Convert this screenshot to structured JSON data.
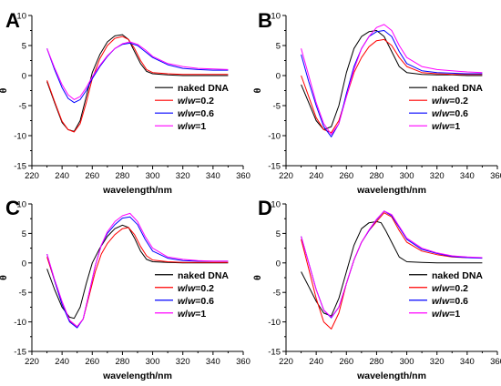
{
  "chart_data": [
    {
      "type": "line",
      "panel": "A",
      "xlabel": "wavelength/nm",
      "ylabel": "θ",
      "xlim": [
        220,
        360
      ],
      "ylim": [
        -15,
        10
      ],
      "xticks": [
        220,
        240,
        260,
        280,
        300,
        320,
        340,
        360
      ],
      "yticks": [
        -15,
        -10,
        -5,
        0,
        5,
        10
      ],
      "legend_position": "lower-right",
      "series": [
        {
          "name": "naked DNA",
          "color": "#000000",
          "x": [
            230,
            235,
            240,
            244,
            248,
            252,
            256,
            260,
            265,
            270,
            275,
            280,
            284,
            288,
            292,
            296,
            300,
            310,
            320,
            330,
            340,
            350
          ],
          "y": [
            -1,
            -4.5,
            -7.8,
            -9.0,
            -9.3,
            -7.5,
            -3.5,
            0.5,
            3.5,
            5.6,
            6.6,
            6.8,
            6.0,
            4.0,
            2.0,
            0.7,
            0.3,
            0.1,
            0,
            0,
            0,
            0
          ]
        },
        {
          "name": "w/w=0.2",
          "color": "#ff0000",
          "x": [
            230,
            235,
            240,
            244,
            248,
            252,
            256,
            260,
            265,
            270,
            275,
            280,
            284,
            288,
            292,
            296,
            300,
            310,
            320,
            330,
            340,
            350
          ],
          "y": [
            -0.8,
            -4.3,
            -7.6,
            -9.0,
            -9.4,
            -8.0,
            -4.5,
            -0.5,
            2.8,
            5.0,
            6.2,
            6.5,
            6.0,
            4.5,
            2.5,
            1.0,
            0.5,
            0.3,
            0.2,
            0.2,
            0.2,
            0.2
          ]
        },
        {
          "name": "w/w=0.6",
          "color": "#0000ff",
          "x": [
            230,
            235,
            240,
            244,
            248,
            252,
            256,
            260,
            265,
            270,
            275,
            280,
            285,
            290,
            295,
            300,
            310,
            320,
            330,
            340,
            350
          ],
          "y": [
            4.5,
            1.0,
            -2.0,
            -3.8,
            -4.5,
            -4.0,
            -2.5,
            -0.5,
            1.5,
            3.2,
            4.5,
            5.2,
            5.4,
            5.0,
            4.0,
            3.0,
            1.8,
            1.2,
            1.0,
            0.9,
            0.9
          ]
        },
        {
          "name": "w/w=1",
          "color": "#ff00ff",
          "x": [
            230,
            235,
            240,
            244,
            248,
            252,
            256,
            260,
            265,
            270,
            275,
            280,
            285,
            290,
            295,
            300,
            310,
            320,
            330,
            340,
            350
          ],
          "y": [
            4.5,
            1.3,
            -1.5,
            -3.2,
            -4.0,
            -3.5,
            -2.0,
            -0.2,
            1.7,
            3.3,
            4.5,
            5.3,
            5.6,
            5.2,
            4.3,
            3.2,
            2.0,
            1.5,
            1.2,
            1.1,
            1.0
          ]
        }
      ]
    },
    {
      "type": "line",
      "panel": "B",
      "xlabel": "wavelength/nm",
      "ylabel": "θ",
      "xlim": [
        220,
        360
      ],
      "ylim": [
        -15,
        10
      ],
      "xticks": [
        220,
        240,
        260,
        280,
        300,
        320,
        340,
        360
      ],
      "yticks": [
        -15,
        -10,
        -5,
        0,
        5,
        10
      ],
      "legend_position": "lower-right",
      "series": [
        {
          "name": "naked DNA",
          "color": "#000000",
          "x": [
            230,
            235,
            240,
            245,
            250,
            255,
            260,
            265,
            270,
            275,
            280,
            285,
            290,
            295,
            300,
            310,
            320,
            330,
            340,
            350
          ],
          "y": [
            -1.5,
            -4.5,
            -7.5,
            -9.0,
            -8.5,
            -5.0,
            0.5,
            4.5,
            6.5,
            7.3,
            7.5,
            6.5,
            4.0,
            1.5,
            0.5,
            0.2,
            0.1,
            0.1,
            0,
            0
          ]
        },
        {
          "name": "w/w=0.2",
          "color": "#ff0000",
          "x": [
            230,
            235,
            240,
            245,
            250,
            255,
            260,
            265,
            270,
            275,
            280,
            285,
            290,
            295,
            300,
            310,
            320,
            330,
            340,
            350
          ],
          "y": [
            0,
            -3.5,
            -7.0,
            -9.0,
            -9.5,
            -7.5,
            -3.5,
            0.5,
            3.0,
            4.8,
            5.8,
            6.0,
            5.0,
            3.0,
            1.5,
            0.5,
            0.3,
            0.2,
            0.2,
            0.2
          ]
        },
        {
          "name": "w/w=0.6",
          "color": "#0000ff",
          "x": [
            230,
            235,
            240,
            245,
            250,
            255,
            260,
            265,
            270,
            275,
            280,
            285,
            290,
            295,
            300,
            310,
            320,
            330,
            340,
            350
          ],
          "y": [
            3.5,
            -1.0,
            -5.0,
            -8.5,
            -10.2,
            -8.0,
            -3.0,
            1.5,
            4.5,
            6.5,
            7.3,
            7.5,
            6.5,
            4.0,
            2.0,
            0.8,
            0.5,
            0.4,
            0.3,
            0.3
          ]
        },
        {
          "name": "w/w=1",
          "color": "#ff00ff",
          "x": [
            230,
            235,
            240,
            245,
            250,
            255,
            260,
            265,
            270,
            275,
            280,
            285,
            290,
            295,
            300,
            310,
            320,
            330,
            340,
            350
          ],
          "y": [
            4.5,
            0,
            -4.5,
            -8.0,
            -9.8,
            -8.0,
            -3.5,
            1.0,
            4.5,
            6.5,
            8.0,
            8.5,
            7.5,
            5.0,
            3.0,
            1.5,
            1.0,
            0.8,
            0.6,
            0.5
          ]
        }
      ]
    },
    {
      "type": "line",
      "panel": "C",
      "xlabel": "wavelength/nm",
      "ylabel": "θ",
      "xlim": [
        220,
        360
      ],
      "ylim": [
        -15,
        10
      ],
      "xticks": [
        220,
        240,
        260,
        280,
        300,
        320,
        340,
        360
      ],
      "yticks": [
        -15,
        -10,
        -5,
        0,
        5,
        10
      ],
      "legend_position": "lower-right",
      "series": [
        {
          "name": "naked DNA",
          "color": "#000000",
          "x": [
            230,
            235,
            240,
            245,
            248,
            252,
            256,
            260,
            265,
            270,
            275,
            280,
            284,
            288,
            292,
            296,
            300,
            310,
            320,
            330,
            340,
            350
          ],
          "y": [
            -1.0,
            -4.5,
            -7.5,
            -9.2,
            -9.4,
            -7.5,
            -3.5,
            0,
            2.5,
            4.5,
            5.8,
            6.4,
            6.0,
            4.2,
            2.0,
            0.6,
            0.2,
            0.1,
            0,
            0,
            0,
            0
          ]
        },
        {
          "name": "w/w=0.2",
          "color": "#ff0000",
          "x": [
            230,
            235,
            240,
            245,
            250,
            254,
            258,
            262,
            266,
            270,
            275,
            280,
            284,
            288,
            292,
            296,
            300,
            310,
            320,
            330,
            340,
            350
          ],
          "y": [
            1.0,
            -3.0,
            -7.0,
            -9.8,
            -10.8,
            -9.5,
            -5.5,
            -1.5,
            1.5,
            3.3,
            4.8,
            5.8,
            6.0,
            4.8,
            2.8,
            1.2,
            0.5,
            0.2,
            0.1,
            0.1,
            0.1,
            0.1
          ]
        },
        {
          "name": "w/w=0.6",
          "color": "#0000ff",
          "x": [
            230,
            235,
            240,
            245,
            250,
            254,
            258,
            262,
            266,
            270,
            275,
            280,
            285,
            290,
            295,
            300,
            310,
            320,
            330,
            340,
            350
          ],
          "y": [
            1.5,
            -3.0,
            -7.0,
            -10.0,
            -11.0,
            -9.5,
            -5.0,
            -0.5,
            3.0,
            5.0,
            6.5,
            7.6,
            7.8,
            6.5,
            4.0,
            2.0,
            0.8,
            0.4,
            0.3,
            0.3,
            0.3
          ]
        },
        {
          "name": "w/w=1",
          "color": "#ff00ff",
          "x": [
            230,
            235,
            240,
            245,
            250,
            254,
            258,
            262,
            266,
            270,
            275,
            280,
            285,
            290,
            295,
            300,
            310,
            320,
            330,
            340,
            350
          ],
          "y": [
            1.5,
            -2.8,
            -6.5,
            -9.7,
            -10.8,
            -9.5,
            -5.0,
            -0.5,
            3.0,
            5.3,
            7.0,
            8.0,
            8.4,
            7.0,
            4.5,
            2.5,
            1.0,
            0.6,
            0.4,
            0.3,
            0.3
          ]
        }
      ]
    },
    {
      "type": "line",
      "panel": "D",
      "xlabel": "wavelength/nm",
      "ylabel": "θ",
      "xlim": [
        220,
        360
      ],
      "ylim": [
        -15,
        10
      ],
      "xticks": [
        220,
        240,
        260,
        280,
        300,
        320,
        340,
        360
      ],
      "yticks": [
        -15,
        -10,
        -5,
        0,
        5,
        10
      ],
      "legend_position": "lower-right",
      "series": [
        {
          "name": "naked DNA",
          "color": "#000000",
          "x": [
            230,
            235,
            240,
            245,
            250,
            255,
            260,
            265,
            270,
            275,
            280,
            283,
            286,
            290,
            295,
            300,
            310,
            320,
            330,
            340,
            350
          ],
          "y": [
            -1.5,
            -4.0,
            -6.5,
            -8.5,
            -9.0,
            -6.0,
            -1.5,
            3.0,
            5.8,
            6.8,
            7.0,
            6.8,
            5.5,
            3.5,
            1.0,
            0.2,
            0.1,
            0,
            0,
            0,
            0
          ]
        },
        {
          "name": "w/w=0.2",
          "color": "#ff0000",
          "x": [
            230,
            235,
            240,
            245,
            250,
            255,
            260,
            265,
            270,
            275,
            280,
            285,
            290,
            295,
            300,
            310,
            320,
            330,
            340,
            350
          ],
          "y": [
            4.0,
            -1.0,
            -6.0,
            -10.0,
            -11.2,
            -8.5,
            -3.5,
            0.5,
            3.5,
            5.5,
            7.0,
            8.5,
            7.8,
            5.5,
            3.5,
            2.0,
            1.4,
            1.0,
            0.9,
            0.9
          ]
        },
        {
          "name": "w/w=0.6",
          "color": "#0000ff",
          "x": [
            230,
            235,
            240,
            245,
            250,
            255,
            260,
            265,
            270,
            275,
            280,
            285,
            290,
            295,
            300,
            310,
            320,
            330,
            340,
            350
          ],
          "y": [
            4.5,
            0,
            -4.5,
            -8.0,
            -9.3,
            -7.5,
            -3.5,
            0.5,
            3.5,
            5.5,
            7.3,
            8.8,
            8.0,
            6.0,
            4.0,
            2.3,
            1.6,
            1.1,
            0.9,
            0.8
          ]
        },
        {
          "name": "w/w=1",
          "color": "#ff00ff",
          "x": [
            230,
            235,
            240,
            245,
            250,
            255,
            260,
            265,
            270,
            275,
            280,
            285,
            290,
            295,
            300,
            310,
            320,
            330,
            340,
            350
          ],
          "y": [
            4.5,
            0,
            -4.5,
            -8.0,
            -9.2,
            -7.5,
            -3.5,
            0.5,
            3.5,
            5.6,
            7.4,
            8.8,
            8.2,
            6.2,
            4.2,
            2.5,
            1.7,
            1.2,
            1.0,
            0.9
          ]
        }
      ]
    }
  ]
}
